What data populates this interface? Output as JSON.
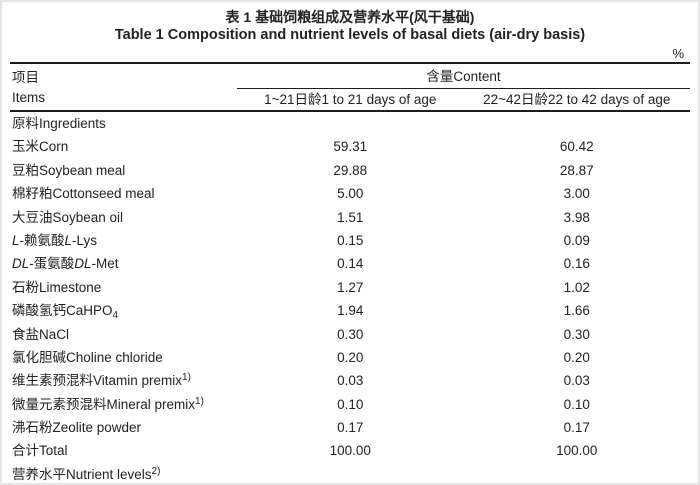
{
  "unit": "%",
  "title": {
    "zh": "表 1 基础饲粮组成及营养水平(风干基础)",
    "en": "Table 1 Composition and nutrient levels of basal diets (air-dry basis)"
  },
  "header": {
    "items_zh": "项目",
    "items_en": "Items",
    "content": "含量Content",
    "col1": "1~21日龄1 to 21 days of age",
    "col2": "22~42日龄22 to 42 days of age"
  },
  "rows": [
    {
      "label": [
        {
          "t": "原料Ingredients"
        }
      ],
      "v1": "",
      "v2": ""
    },
    {
      "label": [
        {
          "t": "玉米Corn"
        }
      ],
      "v1": "59.31",
      "v2": "60.42"
    },
    {
      "label": [
        {
          "t": "豆粕Soybean meal"
        }
      ],
      "v1": "29.88",
      "v2": "28.87"
    },
    {
      "label": [
        {
          "t": "棉籽粕Cottonseed meal"
        }
      ],
      "v1": "5.00",
      "v2": "3.00"
    },
    {
      "label": [
        {
          "t": "大豆油Soybean oil"
        }
      ],
      "v1": "1.51",
      "v2": "3.98"
    },
    {
      "label": [
        {
          "t": "L",
          "i": true
        },
        {
          "t": "-赖氨酸"
        },
        {
          "t": "L",
          "i": true
        },
        {
          "t": "-Lys"
        }
      ],
      "v1": "0.15",
      "v2": "0.09"
    },
    {
      "label": [
        {
          "t": "DL",
          "i": true
        },
        {
          "t": "-蛋氨酸"
        },
        {
          "t": "DL",
          "i": true
        },
        {
          "t": "-Met"
        }
      ],
      "v1": "0.14",
      "v2": "0.16"
    },
    {
      "label": [
        {
          "t": "石粉Limestone"
        }
      ],
      "v1": "1.27",
      "v2": "1.02"
    },
    {
      "label": [
        {
          "t": "磷酸氢钙CaHPO"
        },
        {
          "t": "4",
          "sub": true
        }
      ],
      "v1": "1.94",
      "v2": "1.66"
    },
    {
      "label": [
        {
          "t": "食盐NaCl"
        }
      ],
      "v1": "0.30",
      "v2": "0.30"
    },
    {
      "label": [
        {
          "t": "氯化胆碱Choline chloride"
        }
      ],
      "v1": "0.20",
      "v2": "0.20"
    },
    {
      "label": [
        {
          "t": "维生素预混料Vitamin premix"
        },
        {
          "t": "1)",
          "sup": true
        }
      ],
      "v1": "0.03",
      "v2": "0.03"
    },
    {
      "label": [
        {
          "t": "微量元素预混料Mineral premix"
        },
        {
          "t": "1)",
          "sup": true
        }
      ],
      "v1": "0.10",
      "v2": "0.10"
    },
    {
      "label": [
        {
          "t": "沸石粉Zeolite powder"
        }
      ],
      "v1": "0.17",
      "v2": "0.17"
    },
    {
      "label": [
        {
          "t": "合计Total"
        }
      ],
      "v1": "100.00",
      "v2": "100.00"
    },
    {
      "label": [
        {
          "t": "营养水平Nutrient levels"
        },
        {
          "t": "2)",
          "sup": true
        }
      ],
      "v1": "",
      "v2": ""
    }
  ],
  "colors": {
    "text": "#222222",
    "rule": "#1c1c1c",
    "frame_border": "#e5e5e5",
    "background": "#ffffff"
  }
}
